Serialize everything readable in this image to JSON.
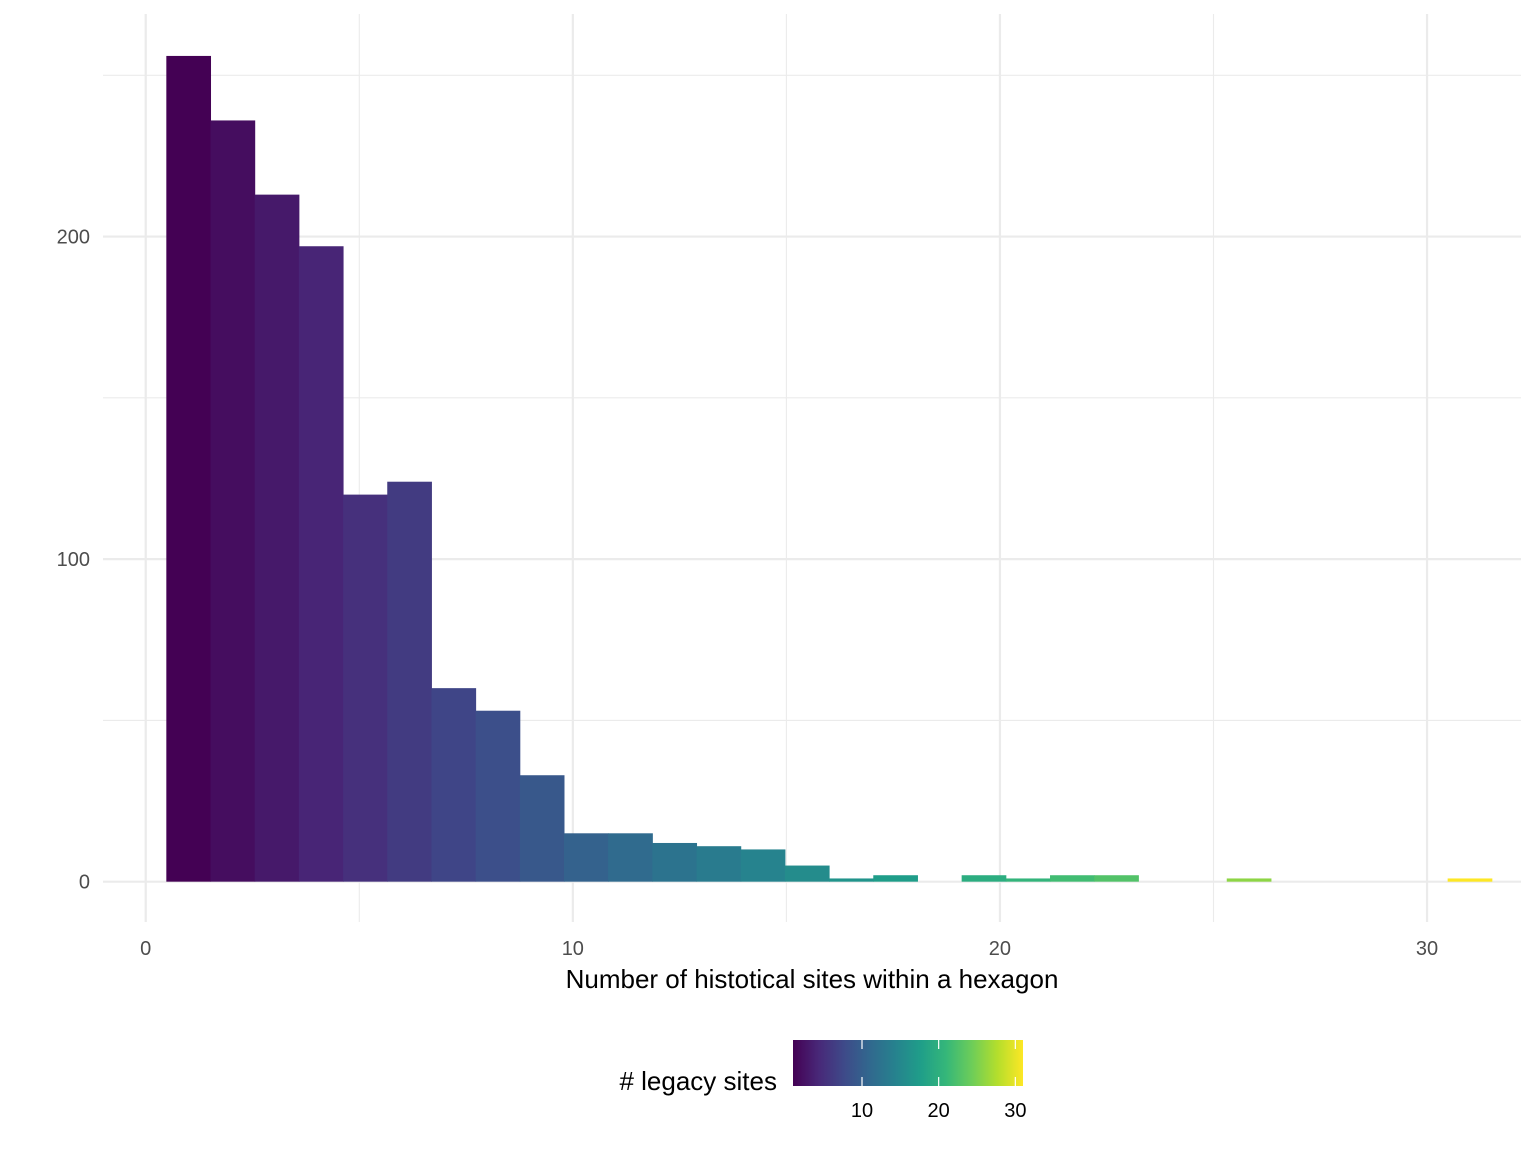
{
  "chart_data": {
    "type": "bar",
    "subtype": "histogram",
    "xlabel": "Number of histotical sites within a hexagon",
    "ylabel": "",
    "xlim": [
      -1,
      32.2
    ],
    "ylim": [
      -12.5,
      269
    ],
    "x_ticks": [
      0,
      10,
      20,
      30
    ],
    "x_tick_labels": [
      "0",
      "10",
      "20",
      "30"
    ],
    "y_ticks": [
      0,
      100,
      200
    ],
    "y_tick_labels": [
      "0",
      "100",
      "200"
    ],
    "grid": true,
    "bin_width": 1.0345,
    "bins": [
      {
        "center": 1.0,
        "count": 256
      },
      {
        "center": 2.0345,
        "count": 236
      },
      {
        "center": 3.069,
        "count": 213
      },
      {
        "center": 4.1035,
        "count": 197
      },
      {
        "center": 5.138,
        "count": 120
      },
      {
        "center": 6.1725,
        "count": 124
      },
      {
        "center": 7.207,
        "count": 60
      },
      {
        "center": 8.2415,
        "count": 53
      },
      {
        "center": 9.276,
        "count": 33
      },
      {
        "center": 10.3105,
        "count": 15
      },
      {
        "center": 11.345,
        "count": 15
      },
      {
        "center": 12.3795,
        "count": 12
      },
      {
        "center": 13.414,
        "count": 11
      },
      {
        "center": 14.4485,
        "count": 10
      },
      {
        "center": 15.483,
        "count": 5
      },
      {
        "center": 16.5175,
        "count": 1
      },
      {
        "center": 17.552,
        "count": 2
      },
      {
        "center": 18.5865,
        "count": 0
      },
      {
        "center": 19.621,
        "count": 2
      },
      {
        "center": 20.6555,
        "count": 1
      },
      {
        "center": 21.69,
        "count": 2
      },
      {
        "center": 22.7245,
        "count": 2
      },
      {
        "center": 23.759,
        "count": 0
      },
      {
        "center": 24.7935,
        "count": 0
      },
      {
        "center": 25.828,
        "count": 1
      },
      {
        "center": 26.8625,
        "count": 0
      },
      {
        "center": 27.897,
        "count": 0
      },
      {
        "center": 28.9315,
        "count": 0
      },
      {
        "center": 29.966,
        "count": 0
      },
      {
        "center": 31.0,
        "count": 1
      }
    ],
    "fill_scale": {
      "palette": "viridis",
      "colors": [
        "#440154",
        "#482878",
        "#3E4A89",
        "#31688E",
        "#26828E",
        "#1F9E89",
        "#35B779",
        "#6DCD59",
        "#B4DE2C",
        "#FDE725"
      ],
      "range": [
        1,
        31
      ]
    },
    "legend": {
      "title": "# legacy sites",
      "position": "bottom",
      "ticks": [
        10,
        20,
        30
      ],
      "tick_labels": [
        "10",
        "20",
        "30"
      ]
    }
  }
}
